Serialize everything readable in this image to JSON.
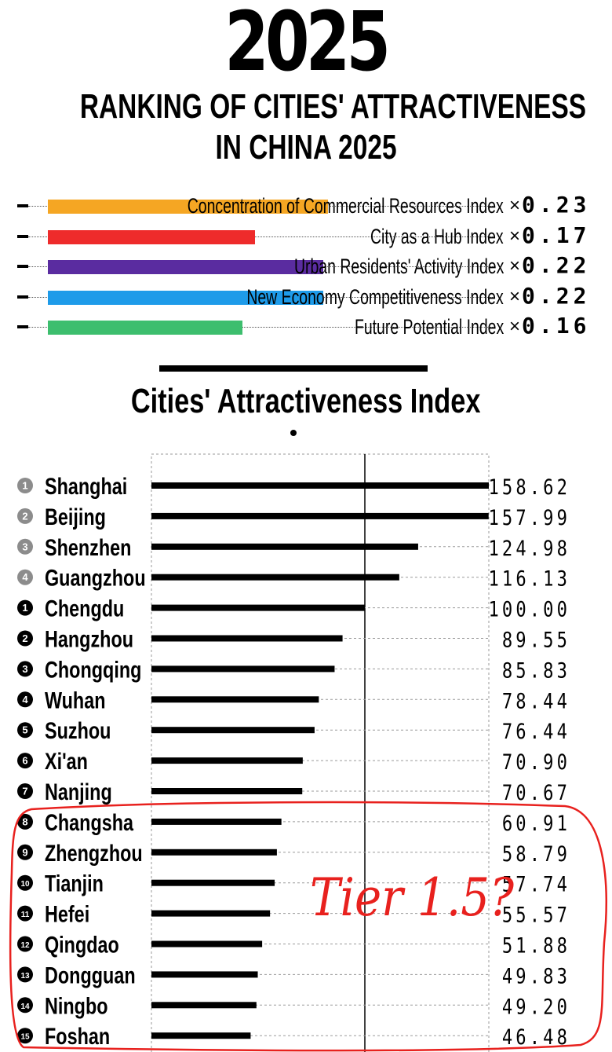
{
  "header": {
    "year": "2025",
    "title_line1": "RANKING OF CITIES' ATTRACTIVENESS",
    "title_line2": "IN CHINA 2025"
  },
  "weights": [
    {
      "label": "Concentration of Commercial Resources Index",
      "mult": "×",
      "value": "0.23",
      "color": "#F5A623",
      "fraction": 0.23
    },
    {
      "label": "City as a Hub Index",
      "mult": "×",
      "value": "0.17",
      "color": "#EE2B2B",
      "fraction": 0.17
    },
    {
      "label": "Urban Residents' Activity Index",
      "mult": "×",
      "value": "0.22",
      "color": "#5A2CA0",
      "fraction": 0.22
    },
    {
      "label": "New Economy Competitiveness Index",
      "mult": "×",
      "value": "0.22",
      "color": "#1E9BE9",
      "fraction": 0.22
    },
    {
      "label": "Future Potential Index",
      "mult": "×",
      "value": "0.16",
      "color": "#3DBE6E",
      "fraction": 0.16
    }
  ],
  "index_title": "Cities' Attractiveness Index",
  "annotation_text": "Tier 1.5?",
  "chart_data": {
    "type": "bar",
    "orientation": "horizontal",
    "title": "Cities' Attractiveness Index",
    "reference_line": 100,
    "categories": [
      "Shanghai",
      "Beijing",
      "Shenzhen",
      "Guangzhou",
      "Chengdu",
      "Hangzhou",
      "Chongqing",
      "Wuhan",
      "Suzhou",
      "Xi'an",
      "Nanjing",
      "Changsha",
      "Zhengzhou",
      "Tianjin",
      "Hefei",
      "Qingdao",
      "Dongguan",
      "Ningbo",
      "Foshan"
    ],
    "ranks": [
      "1",
      "2",
      "3",
      "4",
      "1",
      "2",
      "3",
      "4",
      "5",
      "6",
      "7",
      "8",
      "9",
      "10",
      "11",
      "12",
      "13",
      "14",
      "15"
    ],
    "tiers": [
      "first",
      "first",
      "first",
      "first",
      "new",
      "new",
      "new",
      "new",
      "new",
      "new",
      "new",
      "new",
      "new",
      "new",
      "new",
      "new",
      "new",
      "new",
      "new"
    ],
    "values": [
      158.62,
      157.99,
      124.98,
      116.13,
      100.0,
      89.55,
      85.83,
      78.44,
      76.44,
      70.9,
      70.67,
      60.91,
      58.79,
      57.74,
      55.57,
      51.88,
      49.83,
      49.2,
      46.48
    ],
    "value_labels": [
      "158.62",
      "157.99",
      "124.98",
      "116.13",
      "100.00",
      "89.55",
      "85.83",
      "78.44",
      "76.44",
      "70.90",
      "70.67",
      "60.91",
      "58.79",
      "57.74",
      "55.57",
      "51.88",
      "49.83",
      "49.20",
      "46.48"
    ],
    "colors": {
      "bar": "#000000",
      "first_tier_badge": "#8C8C8C",
      "new_tier_badge": "#000000",
      "annotation": "#E8211E"
    }
  }
}
